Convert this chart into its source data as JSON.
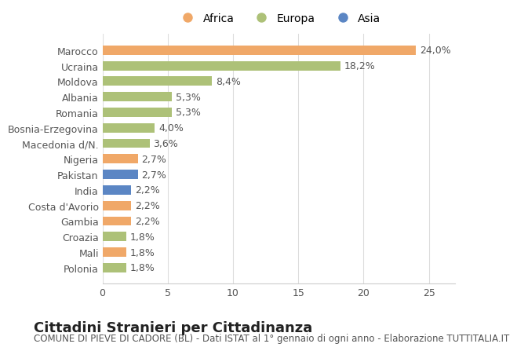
{
  "categories": [
    "Marocco",
    "Ucraina",
    "Moldova",
    "Albania",
    "Romania",
    "Bosnia-Erzegovina",
    "Macedonia d/N.",
    "Nigeria",
    "Pakistan",
    "India",
    "Costa d'Avorio",
    "Gambia",
    "Croazia",
    "Mali",
    "Polonia"
  ],
  "values": [
    24.0,
    18.2,
    8.4,
    5.3,
    5.3,
    4.0,
    3.6,
    2.7,
    2.7,
    2.2,
    2.2,
    2.2,
    1.8,
    1.8,
    1.8
  ],
  "labels": [
    "24,0%",
    "18,2%",
    "8,4%",
    "5,3%",
    "5,3%",
    "4,0%",
    "3,6%",
    "2,7%",
    "2,7%",
    "2,2%",
    "2,2%",
    "2,2%",
    "1,8%",
    "1,8%",
    "1,8%"
  ],
  "colors": [
    "#f0a868",
    "#adc178",
    "#adc178",
    "#adc178",
    "#adc178",
    "#adc178",
    "#adc178",
    "#f0a868",
    "#5b86c4",
    "#5b86c4",
    "#f0a868",
    "#f0a868",
    "#adc178",
    "#f0a868",
    "#adc178"
  ],
  "legend_labels": [
    "Africa",
    "Europa",
    "Asia"
  ],
  "legend_colors": [
    "#f0a868",
    "#adc178",
    "#5b86c4"
  ],
  "title": "Cittadini Stranieri per Cittadinanza",
  "subtitle": "COMUNE DI PIEVE DI CADORE (BL) - Dati ISTAT al 1° gennaio di ogni anno - Elaborazione TUTTITALIA.IT",
  "xlim": [
    0,
    27
  ],
  "xticks": [
    0,
    5,
    10,
    15,
    20,
    25
  ],
  "background_color": "#ffffff",
  "bar_height": 0.6,
  "title_fontsize": 13,
  "subtitle_fontsize": 8.5,
  "label_fontsize": 9,
  "tick_fontsize": 9
}
